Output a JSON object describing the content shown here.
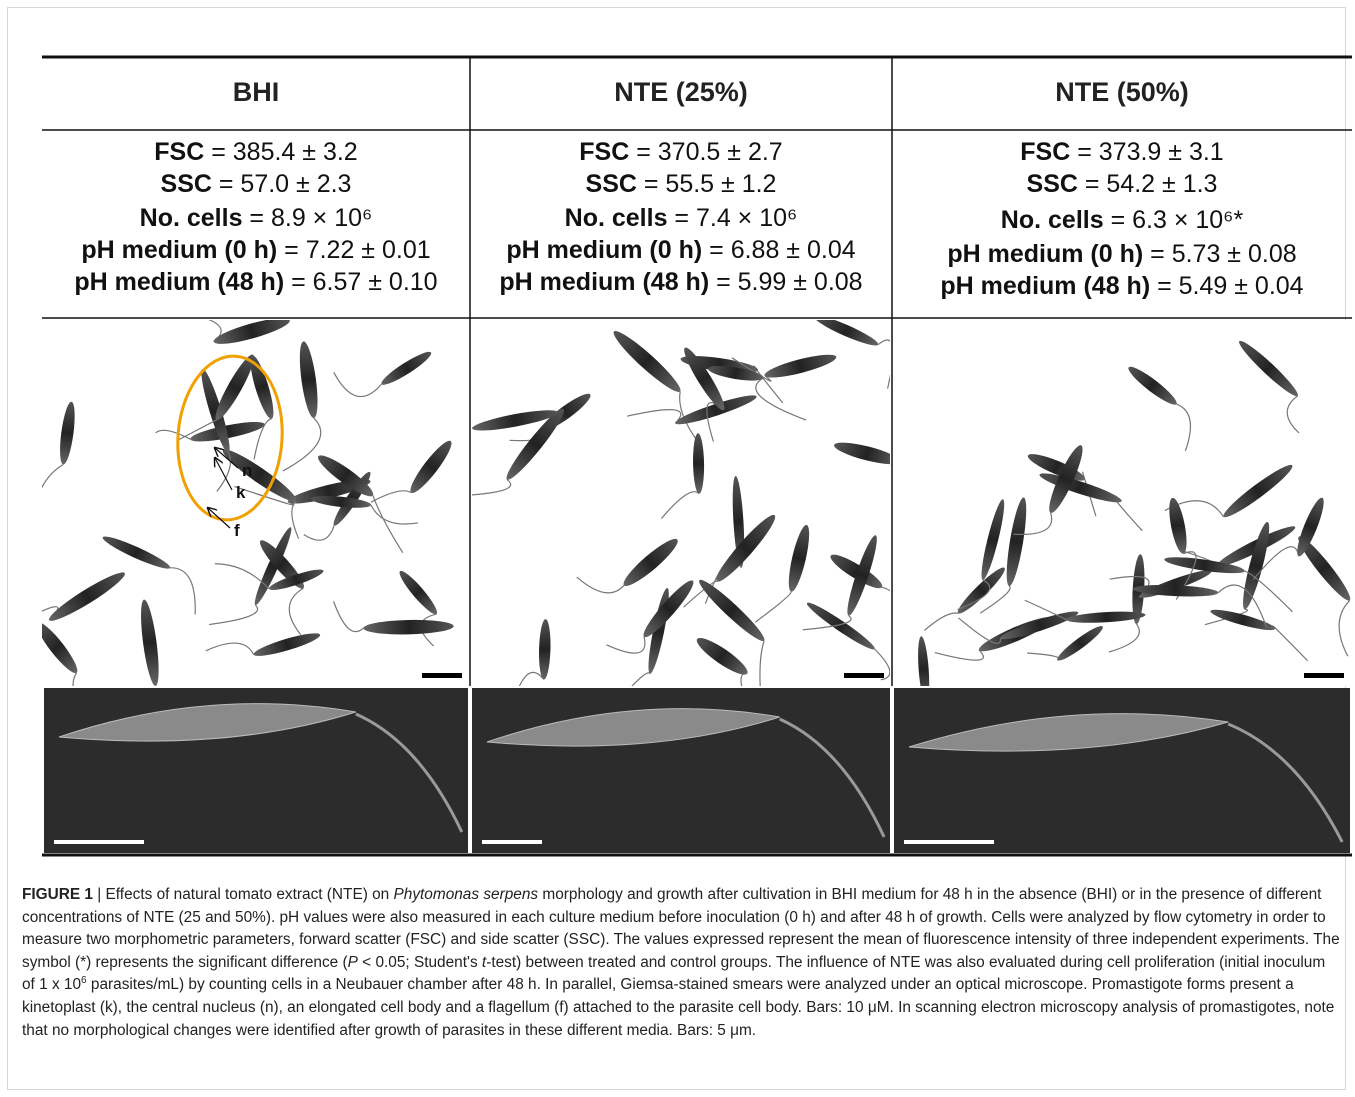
{
  "figure": {
    "columns": [
      {
        "header": "BHI",
        "rows": [
          {
            "label": "FSC",
            "value": "= 385.4 ± 3.2"
          },
          {
            "label": "SSC",
            "value": "= 57.0 ± 2.3"
          },
          {
            "label": "No. cells",
            "value": "= 8.9 × 10⁶"
          },
          {
            "label": "pH medium (0 h)",
            "value": "= 7.22 ± 0.01"
          },
          {
            "label": "pH medium (48 h)",
            "value": "= 6.57 ± 0.10"
          }
        ]
      },
      {
        "header": "NTE (25%)",
        "rows": [
          {
            "label": "FSC",
            "value": "= 370.5 ± 2.7"
          },
          {
            "label": "SSC",
            "value": "= 55.5 ± 1.2"
          },
          {
            "label": "No. cells",
            "value": "= 7.4 × 10⁶"
          },
          {
            "label": "pH medium (0 h)",
            "value": "= 6.88 ± 0.04"
          },
          {
            "label": "pH medium (48 h)",
            "value": "= 5.99 ± 0.08"
          }
        ]
      },
      {
        "header": "NTE (50%)",
        "rows": [
          {
            "label": "FSC",
            "value": "= 373.9 ± 3.1"
          },
          {
            "label": "SSC",
            "value": "= 54.2 ± 1.3"
          },
          {
            "label": "No. cells",
            "value": "= 6.3 × 10⁶*"
          },
          {
            "label": "pH medium (0 h)",
            "value": "= 5.73 ± 0.08"
          },
          {
            "label": "pH medium (48 h)",
            "value": "= 5.49 ± 0.04"
          }
        ]
      }
    ],
    "annotations": [
      "n",
      "k",
      "f"
    ]
  },
  "caption": {
    "label": "FIGURE 1",
    "text_1": " | Effects of natural tomato extract (NTE) on ",
    "species": "Phytomonas serpens",
    "text_2": " morphology and growth after cultivation in BHI medium for 48 h in the absence (BHI) or in the presence of different concentrations of NTE (25 and 50%). pH values were also measured in each culture medium before inoculation (0 h) and after 48 h of growth. Cells were analyzed by flow cytometry in order to measure two morphometric parameters, forward scatter (FSC) and side scatter (SSC). The values expressed represent the mean of fluorescence intensity of three independent experiments. The symbol (*) represents the significant difference (",
    "p": "P",
    "text_3": " < 0.05; Student's ",
    "t": "t",
    "text_4": "-test) between treated and control groups. The influence of NTE was also evaluated during cell proliferation (initial inoculum of 1 x 10",
    "exponent": "6",
    "text_5": " parasites/mL) by counting cells in a Neubauer chamber after 48 h. In parallel, Giemsa-stained smears were analyzed under an optical microscope. Promastigote forms present a kinetoplast (k), the central nucleus (n), an elongated cell body and a flagellum (f) attached to the parasite cell body. Bars: 10 μM. In scanning electron microscopy analysis of promastigotes, note that no morphological changes were identified after growth of parasites in these different media. Bars: 5 μm."
  }
}
